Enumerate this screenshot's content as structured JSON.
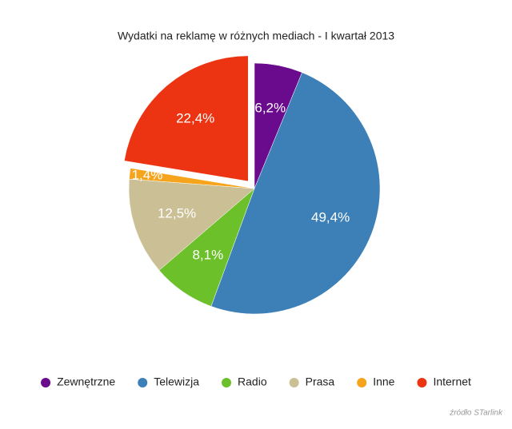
{
  "chart_data": {
    "type": "pie",
    "title": "Wydatki na reklamę w różnych mediach - I kwartał 2013",
    "categories": [
      "Zewnętrzne",
      "Telewizja",
      "Radio",
      "Prasa",
      "Inne",
      "Internet"
    ],
    "values": [
      6.2,
      49.4,
      8.1,
      12.5,
      1.4,
      22.4
    ],
    "value_labels": [
      "6,2%",
      "49,4%",
      "8,1%",
      "12,5%",
      "1,4%",
      "22,4%"
    ],
    "colors": [
      "#6a0a8c",
      "#3d80b8",
      "#6cc12a",
      "#cbbf95",
      "#f5a41c",
      "#ec3412"
    ],
    "explode": [
      false,
      false,
      false,
      false,
      false,
      true
    ],
    "legend": "bottom",
    "source": "źródło STarlink"
  }
}
